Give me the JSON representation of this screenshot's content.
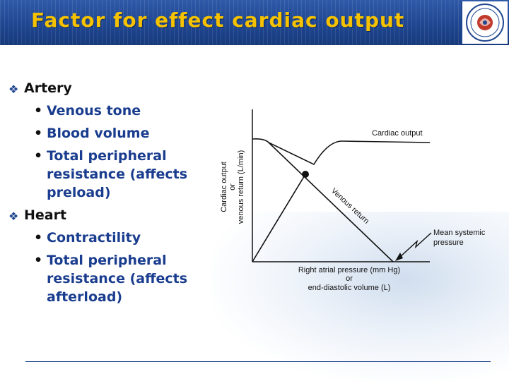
{
  "slide": {
    "title": "Factor for effect cardiac output",
    "header_color": "#1f4690",
    "title_color": "#f6c200"
  },
  "bullets": [
    {
      "label": "Artery",
      "sub": [
        "Venous tone",
        "Blood volume",
        "Total peripheral resistance (affects preload)"
      ]
    },
    {
      "label": "Heart",
      "sub": [
        "Contractility",
        "Total peripheral resistance (affects afterload)"
      ]
    }
  ],
  "figure": {
    "y_label_lines": [
      "Cardiac output",
      "or",
      "venous return (L/min)"
    ],
    "x_label_lines": [
      "Right atrial pressure (mm Hg)",
      "or",
      "end-diastolic volume (L)"
    ],
    "curve_labels": {
      "cardiac_output": "Cardiac output",
      "venous_return": "Venous return",
      "mean_systemic": [
        "Mean systemic",
        "pressure"
      ]
    }
  }
}
